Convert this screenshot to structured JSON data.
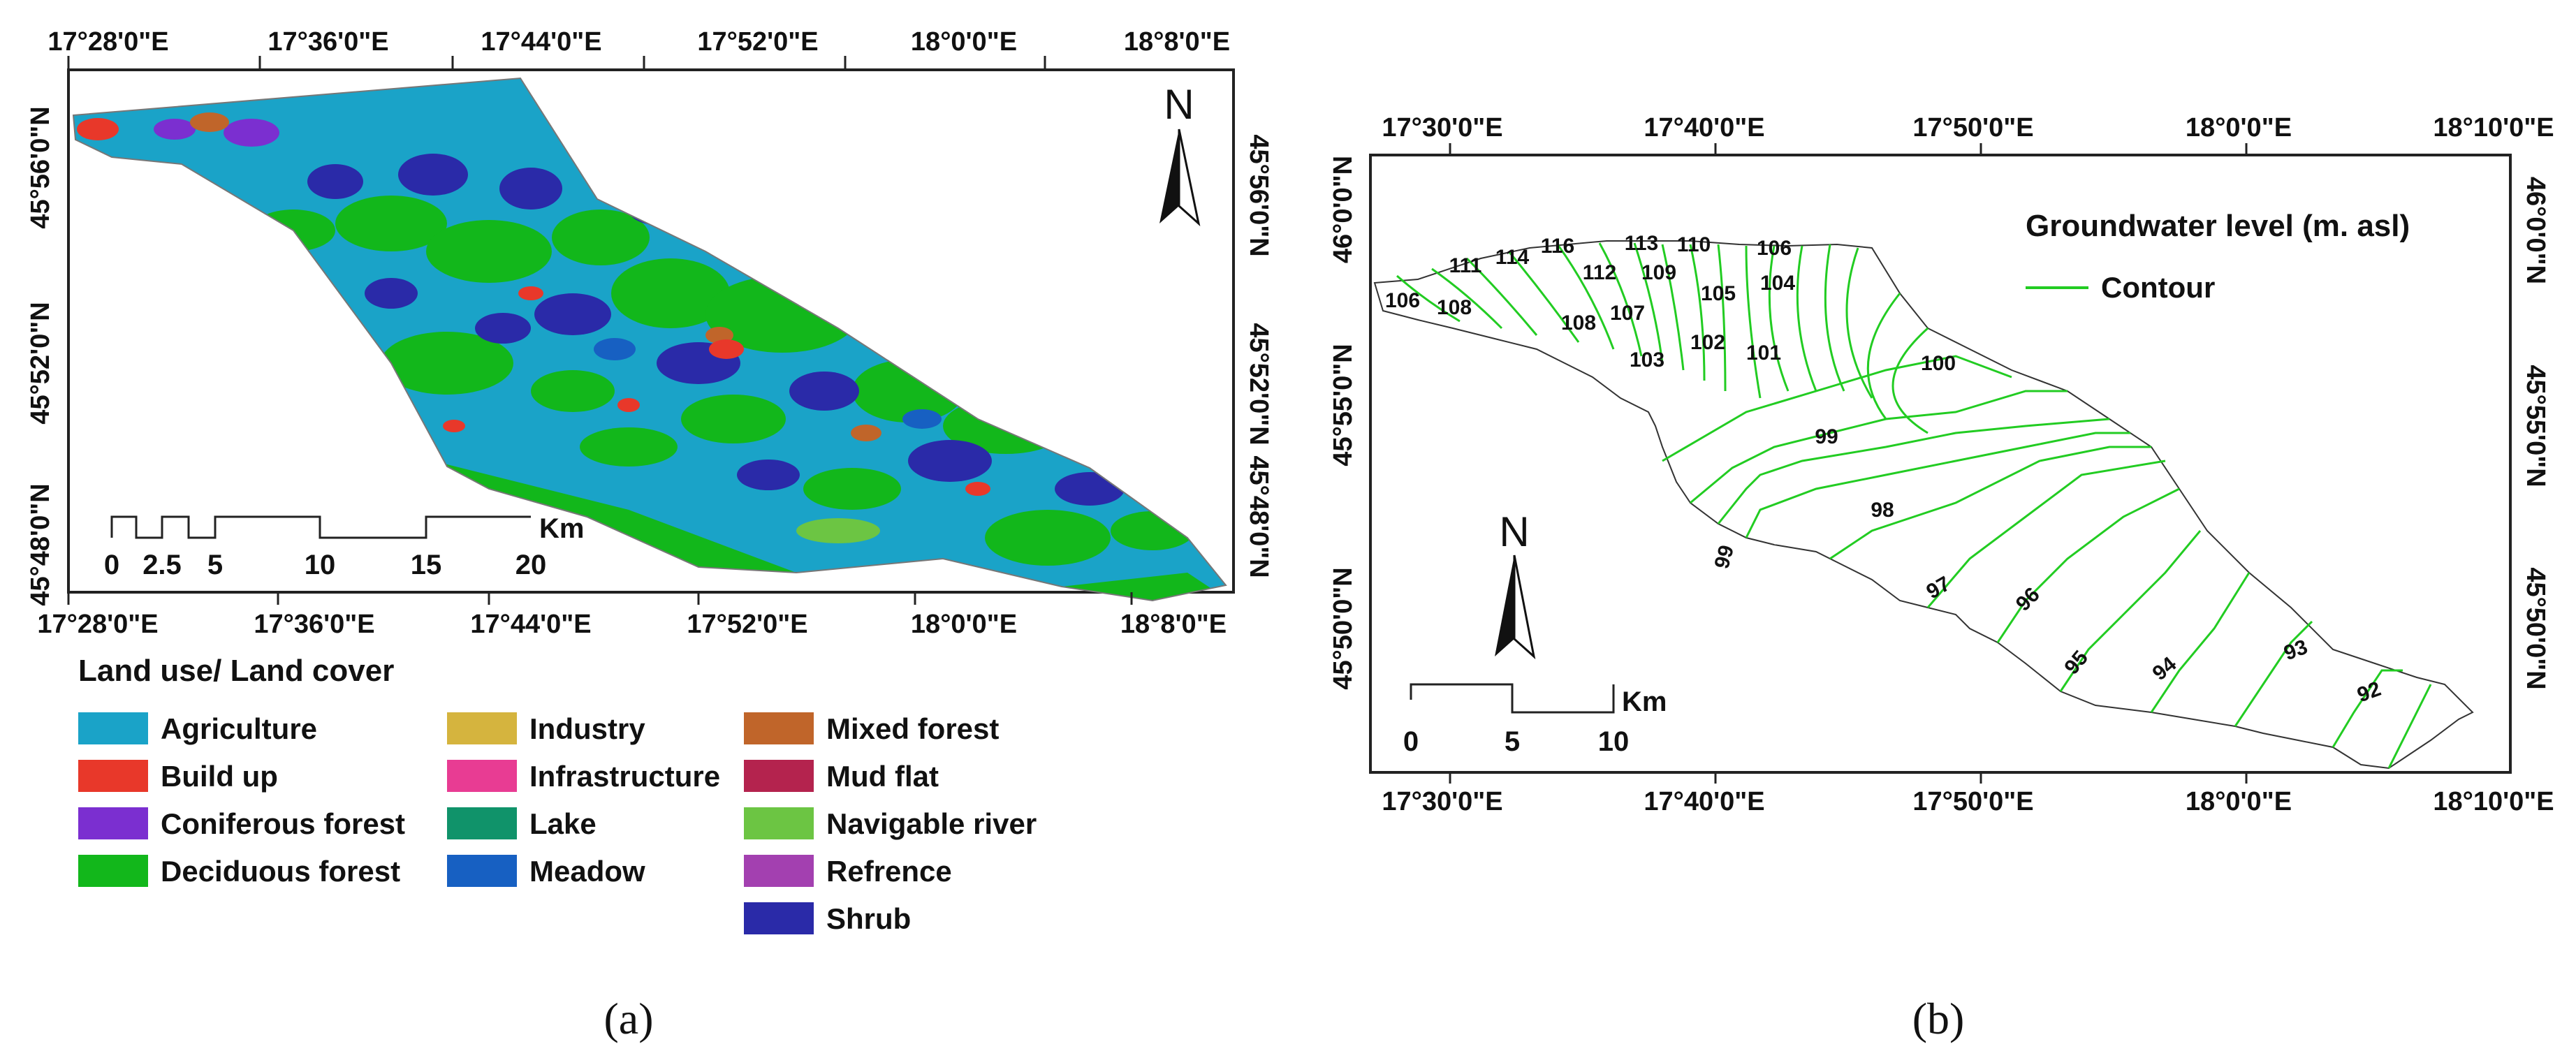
{
  "panel_a": {
    "label": "(a)",
    "top_lon": [
      "17°28'0\"E",
      "17°36'0\"E",
      "17°44'0\"E",
      "17°52'0\"E",
      "18°0'0\"E",
      "18°8'0\"E"
    ],
    "bottom_lon": [
      "17°28'0\"E",
      "17°36'0\"E",
      "17°44'0\"E",
      "17°52'0\"E",
      "18°0'0\"E",
      "18°8'0\"E"
    ],
    "left_lat": [
      "45°56'0\"N",
      "45°52'0\"N",
      "45°48'0\"N"
    ],
    "right_lat": [
      "45°56'0\"N",
      "45°52'0\"N",
      "45°48'0\"N"
    ],
    "north": "N",
    "scale_unit": "Km",
    "scale_ticks": [
      "0",
      "2.5",
      "5",
      "10",
      "15",
      "20"
    ],
    "legend_title": "Land use/ Land cover",
    "legend": [
      {
        "name": "Agriculture",
        "color": "#1aa3c8"
      },
      {
        "name": "Build up",
        "color": "#e8382a"
      },
      {
        "name": "Coniferous forest",
        "color": "#7b2fd0"
      },
      {
        "name": "Deciduous forest",
        "color": "#12b71b"
      },
      {
        "name": "Industry",
        "color": "#d5b43e"
      },
      {
        "name": "Infrastructure",
        "color": "#e83c93"
      },
      {
        "name": "Lake",
        "color": "#10936a"
      },
      {
        "name": "Meadow",
        "color": "#1760c2"
      },
      {
        "name": "Mixed forest",
        "color": "#c0652a"
      },
      {
        "name": "Mud flat",
        "color": "#b4234e"
      },
      {
        "name": "Navigable river",
        "color": "#6cc543"
      },
      {
        "name": "Refrence",
        "color": "#a340b0"
      },
      {
        "name": "Shrub",
        "color": "#2a2aa8"
      }
    ]
  },
  "panel_b": {
    "label": "(b)",
    "top_lon": [
      "17°30'0\"E",
      "17°40'0\"E",
      "17°50'0\"E",
      "18°0'0\"E",
      "18°10'0\"E"
    ],
    "bottom_lon": [
      "17°30'0\"E",
      "17°40'0\"E",
      "17°50'0\"E",
      "18°0'0\"E",
      "18°10'0\"E"
    ],
    "left_lat": [
      "46°0'0\"N",
      "45°55'0\"N",
      "45°50'0\"N"
    ],
    "right_lat": [
      "46°0'0\"N",
      "45°55'0\"N",
      "45°50'0\"N"
    ],
    "north": "N",
    "scale_unit": "Km",
    "scale_ticks": [
      "0",
      "5",
      "10"
    ],
    "legend_title": "Groundwater level (m. asl)",
    "legend_item": "Contour",
    "contour_color": "#22cc22",
    "contour_labels": [
      "106",
      "108",
      "111",
      "114",
      "116",
      "112",
      "113",
      "108",
      "107",
      "109",
      "110",
      "106",
      "105",
      "104",
      "103",
      "102",
      "101",
      "100",
      "99",
      "99",
      "98",
      "97",
      "96",
      "95",
      "94",
      "93",
      "92"
    ]
  }
}
